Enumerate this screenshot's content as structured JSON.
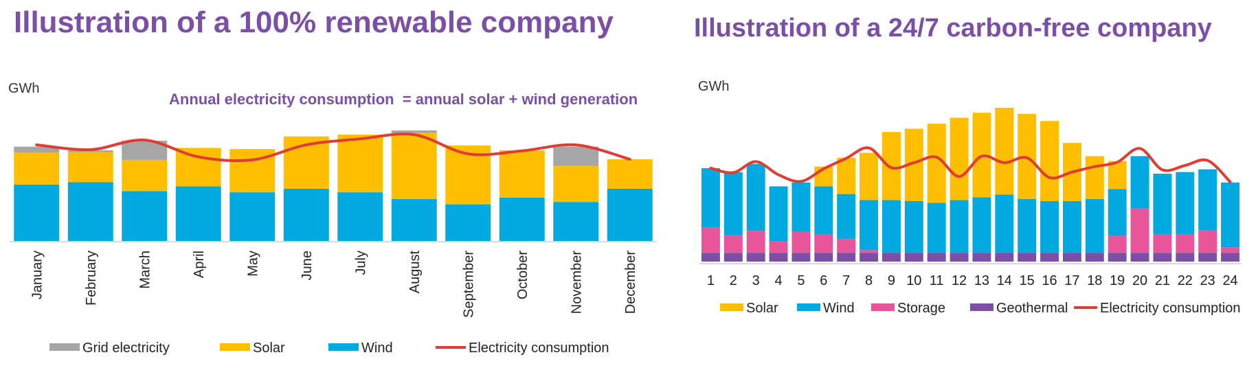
{
  "chart_data": [
    {
      "type": "bar",
      "stacked": true,
      "title": "Illustration of a 100% renewable company",
      "ylabel": "GWh",
      "annotation": "Annual electricity consumption  = annual solar + wind generation",
      "categories": [
        "January",
        "February",
        "March",
        "April",
        "May",
        "June",
        "July",
        "August",
        "September",
        "October",
        "November",
        "December"
      ],
      "series": [
        {
          "name": "Wind",
          "color": "#00a9e0",
          "values": [
            94,
            98,
            83,
            91,
            81,
            87,
            81,
            70,
            61,
            72,
            65,
            87
          ]
        },
        {
          "name": "Solar",
          "color": "#ffbf00",
          "values": [
            53,
            50,
            52,
            64,
            72,
            87,
            96,
            110,
            98,
            79,
            60,
            49
          ]
        },
        {
          "name": "Grid electricity",
          "color": "#a6a6a6",
          "values": [
            10,
            3,
            32,
            0,
            0,
            0,
            0,
            4,
            0,
            0,
            32,
            0
          ]
        }
      ],
      "line": {
        "name": "Electricity consumption",
        "color": "#e03c31",
        "values": [
          160,
          152,
          168,
          140,
          135,
          160,
          170,
          177,
          145,
          150,
          160,
          136
        ]
      },
      "legend": [
        "Grid electricity",
        "Solar",
        "Wind",
        "Electricity consumption"
      ],
      "ylim": [
        0,
        200
      ],
      "grid": false
    },
    {
      "type": "bar",
      "stacked": true,
      "title": "Illustration of a 24/7 carbon-free company",
      "ylabel": "GWh",
      "categories": [
        "1",
        "2",
        "3",
        "4",
        "5",
        "6",
        "7",
        "8",
        "9",
        "10",
        "11",
        "12",
        "13",
        "14",
        "15",
        "16",
        "17",
        "18",
        "19",
        "20",
        "21",
        "22",
        "23",
        "24"
      ],
      "series": [
        {
          "name": "Geothermal",
          "color": "#7b4fa6",
          "values": [
            16,
            16,
            16,
            16,
            16,
            16,
            16,
            16,
            16,
            16,
            16,
            16,
            16,
            16,
            16,
            16,
            16,
            16,
            16,
            16,
            16,
            16,
            16,
            16
          ]
        },
        {
          "name": "Storage",
          "color": "#e8559a",
          "values": [
            46,
            32,
            40,
            21,
            39,
            34,
            25,
            5,
            0,
            0,
            0,
            0,
            0,
            0,
            0,
            0,
            0,
            0,
            31,
            81,
            34,
            34,
            41,
            10
          ]
        },
        {
          "name": "Wind",
          "color": "#00a9e0",
          "values": [
            108,
            115,
            122,
            100,
            89,
            87,
            82,
            91,
            96,
            94,
            91,
            96,
            101,
            106,
            98,
            94,
            94,
            98,
            85,
            95,
            110,
            113,
            111,
            118
          ]
        },
        {
          "name": "Solar",
          "color": "#ffbf00",
          "values": [
            0,
            0,
            0,
            0,
            0,
            36,
            66,
            86,
            124,
            132,
            144,
            150,
            154,
            158,
            155,
            146,
            106,
            78,
            51,
            0,
            0,
            0,
            0,
            0
          ]
        }
      ],
      "line": {
        "name": "Electricity consumption",
        "color": "#e03c31",
        "values": [
          170,
          162,
          182,
          158,
          146,
          169,
          188,
          207,
          171,
          180,
          190,
          155,
          192,
          180,
          189,
          153,
          163,
          173,
          181,
          206,
          167,
          175,
          184,
          145
        ]
      },
      "legend": [
        "Solar",
        "Wind",
        "Storage",
        "Geothermal",
        "Electricity consumption"
      ],
      "ylim": [
        0,
        300
      ],
      "grid": false
    }
  ]
}
